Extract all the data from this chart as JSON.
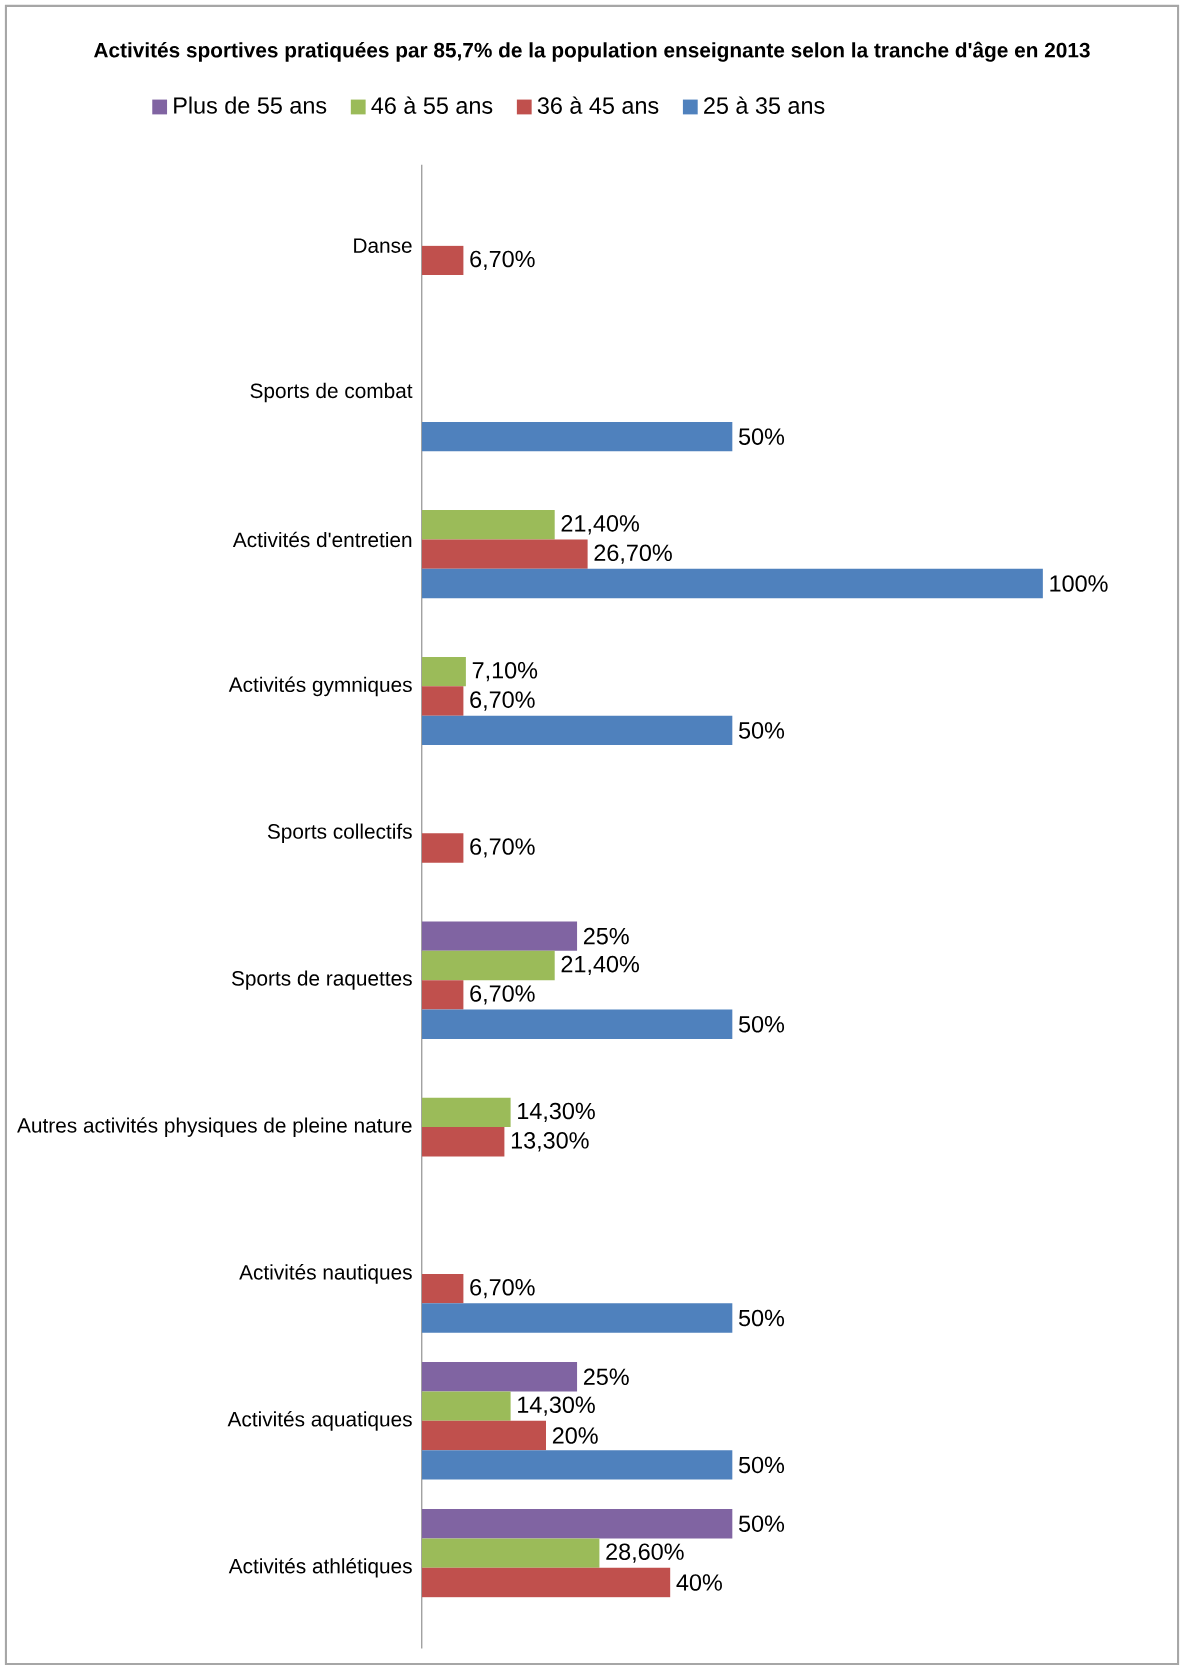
{
  "chart_data": {
    "type": "bar",
    "orientation": "horizontal",
    "title": "Activités sportives pratiquées par 85,7% de la population enseignante selon la tranche d'âge en 2013",
    "categories": [
      "Danse",
      "Sports de combat",
      "Activités d'entretien",
      "Activités gymniques",
      "Sports collectifs",
      "Sports de raquettes",
      "Autres activités physiques de pleine nature",
      "Activités nautiques",
      "Activités aquatiques",
      "Activités athlétiques"
    ],
    "series": [
      {
        "name": "Plus de 55 ans",
        "color": "#8064a2",
        "values": [
          null,
          null,
          null,
          null,
          null,
          25,
          null,
          null,
          25,
          50
        ],
        "value_labels": [
          null,
          null,
          null,
          null,
          null,
          "25%",
          null,
          null,
          "25%",
          "50%"
        ]
      },
      {
        "name": "46 à 55 ans",
        "color": "#9bbb59",
        "values": [
          null,
          null,
          21.4,
          7.1,
          null,
          21.4,
          14.3,
          null,
          14.3,
          28.6
        ],
        "value_labels": [
          null,
          null,
          "21,40%",
          "7,10%",
          null,
          "21,40%",
          "14,30%",
          null,
          "14,30%",
          "28,60%"
        ]
      },
      {
        "name": "36 à 45 ans",
        "color": "#c0504d",
        "values": [
          6.7,
          null,
          26.7,
          6.7,
          6.7,
          6.7,
          13.3,
          6.7,
          20,
          40
        ],
        "value_labels": [
          "6,70%",
          null,
          "26,70%",
          "6,70%",
          "6,70%",
          "6,70%",
          "13,30%",
          "6,70%",
          "20%",
          "40%"
        ]
      },
      {
        "name": "25 à 35 ans",
        "color": "#4f81bd",
        "values": [
          null,
          50,
          100,
          50,
          null,
          50,
          null,
          50,
          50,
          null
        ],
        "value_labels": [
          null,
          "50%",
          "100%",
          "50%",
          null,
          "50%",
          null,
          "50%",
          "50%",
          null
        ]
      }
    ],
    "legend": "top"
  }
}
